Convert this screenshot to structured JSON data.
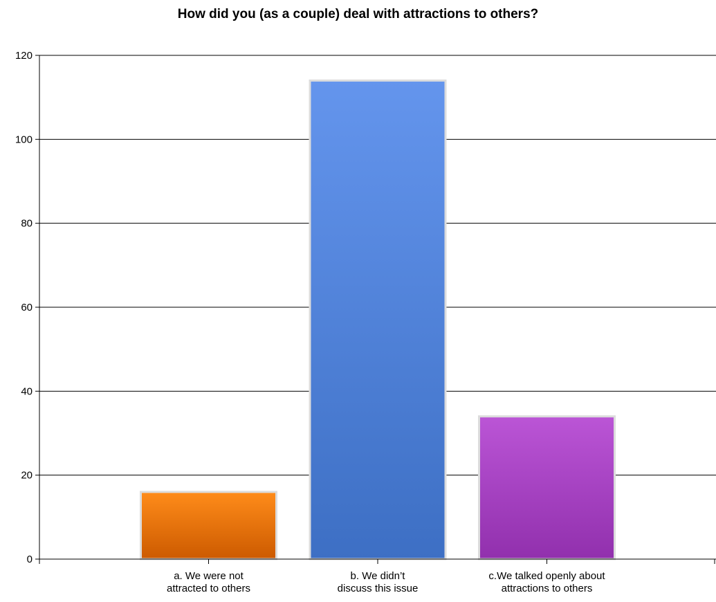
{
  "chart_data": {
    "type": "bar",
    "title": "How did you (as a couple) deal with attractions to others?",
    "categories": [
      [
        "a. We  were  not",
        "attracted to others"
      ],
      [
        "b. We  didn’t",
        "discuss this issue"
      ],
      [
        "c.We  talked  openly  about",
        "attractions to others"
      ]
    ],
    "values": [
      16,
      114,
      34
    ],
    "colors": [
      {
        "top": "#ff8c1a",
        "bottom": "#cc5a00"
      },
      {
        "top": "#6495ed",
        "bottom": "#3d6fc4"
      },
      {
        "top": "#bb55d6",
        "bottom": "#9130ad"
      }
    ],
    "ylim": [
      0,
      120
    ],
    "yticks": [
      0,
      20,
      40,
      60,
      80,
      100,
      120
    ],
    "grid": true,
    "legend": "none"
  }
}
